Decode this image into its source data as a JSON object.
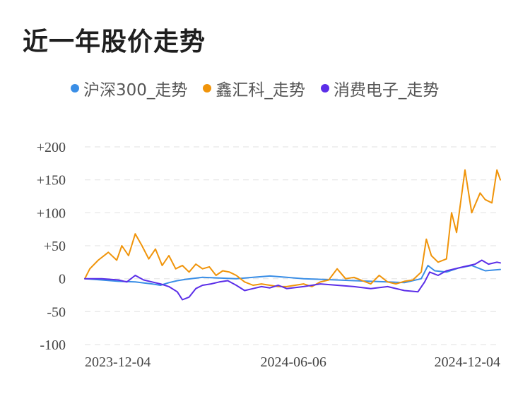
{
  "page_title": "近一年股价走势",
  "chart_data": {
    "type": "line",
    "title": "近一年股价走势",
    "xlabel": "",
    "ylabel": "",
    "ylim": [
      -100,
      200
    ],
    "y_ticks": [
      -100,
      -50,
      0,
      50,
      100,
      150,
      200
    ],
    "y_tick_labels": [
      "-100",
      "-50",
      "0",
      "+50",
      "+100",
      "+150",
      "+200"
    ],
    "x_tick_labels": [
      "2023-12-04",
      "2024-06-06",
      "2024-12-04"
    ],
    "x_tick_positions": [
      0,
      124,
      247
    ],
    "x_range": [
      0,
      247
    ],
    "grid": true,
    "legend_position": "top",
    "series": [
      {
        "name": "沪深300_走势",
        "color": "#3a8ee6",
        "points": [
          [
            0,
            0
          ],
          [
            10,
            -2
          ],
          [
            20,
            -4
          ],
          [
            30,
            -5
          ],
          [
            40,
            -8
          ],
          [
            45,
            -10
          ],
          [
            50,
            -6
          ],
          [
            55,
            -3
          ],
          [
            60,
            -1
          ],
          [
            70,
            2
          ],
          [
            80,
            1
          ],
          [
            90,
            0
          ],
          [
            100,
            2
          ],
          [
            110,
            4
          ],
          [
            120,
            2
          ],
          [
            130,
            0
          ],
          [
            140,
            -1
          ],
          [
            150,
            -2
          ],
          [
            160,
            -3
          ],
          [
            170,
            -4
          ],
          [
            180,
            -5
          ],
          [
            190,
            -6
          ],
          [
            200,
            0
          ],
          [
            204,
            20
          ],
          [
            208,
            12
          ],
          [
            215,
            10
          ],
          [
            222,
            16
          ],
          [
            230,
            20
          ],
          [
            238,
            12
          ],
          [
            247,
            14
          ]
        ]
      },
      {
        "name": "鑫汇科_走势",
        "color": "#f0940a",
        "points": [
          [
            0,
            0
          ],
          [
            3,
            15
          ],
          [
            8,
            28
          ],
          [
            14,
            40
          ],
          [
            19,
            28
          ],
          [
            22,
            50
          ],
          [
            26,
            35
          ],
          [
            30,
            68
          ],
          [
            34,
            50
          ],
          [
            38,
            30
          ],
          [
            42,
            45
          ],
          [
            46,
            20
          ],
          [
            50,
            35
          ],
          [
            54,
            15
          ],
          [
            58,
            20
          ],
          [
            62,
            10
          ],
          [
            66,
            22
          ],
          [
            70,
            15
          ],
          [
            74,
            18
          ],
          [
            78,
            5
          ],
          [
            82,
            12
          ],
          [
            86,
            10
          ],
          [
            90,
            5
          ],
          [
            95,
            -5
          ],
          [
            100,
            -10
          ],
          [
            105,
            -8
          ],
          [
            110,
            -10
          ],
          [
            115,
            -12
          ],
          [
            120,
            -12
          ],
          [
            125,
            -10
          ],
          [
            130,
            -8
          ],
          [
            135,
            -12
          ],
          [
            140,
            -5
          ],
          [
            145,
            -2
          ],
          [
            150,
            15
          ],
          [
            155,
            0
          ],
          [
            160,
            2
          ],
          [
            165,
            -3
          ],
          [
            170,
            -8
          ],
          [
            175,
            5
          ],
          [
            180,
            -5
          ],
          [
            185,
            -8
          ],
          [
            190,
            -4
          ],
          [
            195,
            -2
          ],
          [
            200,
            10
          ],
          [
            203,
            60
          ],
          [
            206,
            35
          ],
          [
            210,
            25
          ],
          [
            215,
            30
          ],
          [
            218,
            100
          ],
          [
            221,
            70
          ],
          [
            226,
            165
          ],
          [
            230,
            100
          ],
          [
            235,
            130
          ],
          [
            238,
            120
          ],
          [
            242,
            115
          ],
          [
            245,
            165
          ],
          [
            247,
            150
          ]
        ]
      },
      {
        "name": "消费电子_走势",
        "color": "#5b2ee8",
        "points": [
          [
            0,
            0
          ],
          [
            10,
            0
          ],
          [
            20,
            -2
          ],
          [
            25,
            -5
          ],
          [
            30,
            5
          ],
          [
            35,
            -2
          ],
          [
            40,
            -5
          ],
          [
            45,
            -8
          ],
          [
            50,
            -12
          ],
          [
            55,
            -20
          ],
          [
            58,
            -32
          ],
          [
            62,
            -28
          ],
          [
            66,
            -15
          ],
          [
            70,
            -10
          ],
          [
            75,
            -8
          ],
          [
            80,
            -5
          ],
          [
            85,
            -3
          ],
          [
            90,
            -10
          ],
          [
            95,
            -18
          ],
          [
            100,
            -15
          ],
          [
            105,
            -12
          ],
          [
            110,
            -14
          ],
          [
            115,
            -10
          ],
          [
            120,
            -15
          ],
          [
            130,
            -12
          ],
          [
            140,
            -8
          ],
          [
            150,
            -10
          ],
          [
            160,
            -12
          ],
          [
            170,
            -15
          ],
          [
            180,
            -12
          ],
          [
            190,
            -18
          ],
          [
            198,
            -20
          ],
          [
            202,
            -5
          ],
          [
            205,
            10
          ],
          [
            210,
            5
          ],
          [
            215,
            12
          ],
          [
            220,
            15
          ],
          [
            225,
            18
          ],
          [
            232,
            22
          ],
          [
            236,
            28
          ],
          [
            240,
            22
          ],
          [
            245,
            25
          ],
          [
            247,
            24
          ]
        ]
      }
    ]
  }
}
